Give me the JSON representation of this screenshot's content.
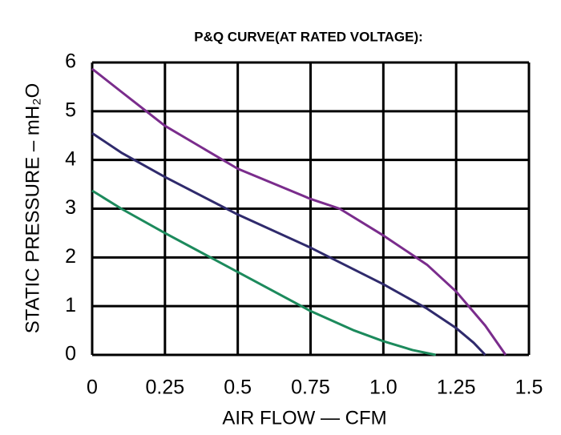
{
  "chart_data": {
    "type": "line",
    "title": "P&Q CURVE(AT RATED VOLTAGE):",
    "xlabel": "AIR FLOW — CFM",
    "ylabel": "STATIC PRESSURE – mH₂O",
    "xlim": [
      0,
      1.5
    ],
    "ylim": [
      0,
      6
    ],
    "xticks": [
      0,
      0.25,
      0.5,
      0.75,
      {
        "value": 1,
        "label": "1.0"
      },
      1.25,
      1.5
    ],
    "yticks": [
      0,
      1,
      2,
      3,
      4,
      5,
      6
    ],
    "grid": true,
    "series": [
      {
        "color": "#7a2c8c",
        "x": [
          0,
          0.1,
          0.25,
          0.5,
          0.75,
          0.85,
          1.0,
          1.15,
          1.25,
          1.35,
          1.42
        ],
        "values": [
          5.87,
          5.4,
          4.7,
          3.82,
          3.2,
          3.0,
          2.45,
          1.85,
          1.3,
          0.6,
          0
        ]
      },
      {
        "color": "#2f2a6c",
        "x": [
          0,
          0.1,
          0.25,
          0.5,
          0.75,
          1.0,
          1.15,
          1.25,
          1.31,
          1.35
        ],
        "values": [
          4.55,
          4.15,
          3.65,
          2.88,
          2.2,
          1.45,
          0.95,
          0.55,
          0.25,
          0
        ]
      },
      {
        "color": "#1c8a5c",
        "x": [
          0,
          0.1,
          0.25,
          0.5,
          0.75,
          0.9,
          1.0,
          1.1,
          1.18
        ],
        "values": [
          3.37,
          3.0,
          2.5,
          1.7,
          0.9,
          0.5,
          0.28,
          0.1,
          0
        ]
      }
    ]
  }
}
